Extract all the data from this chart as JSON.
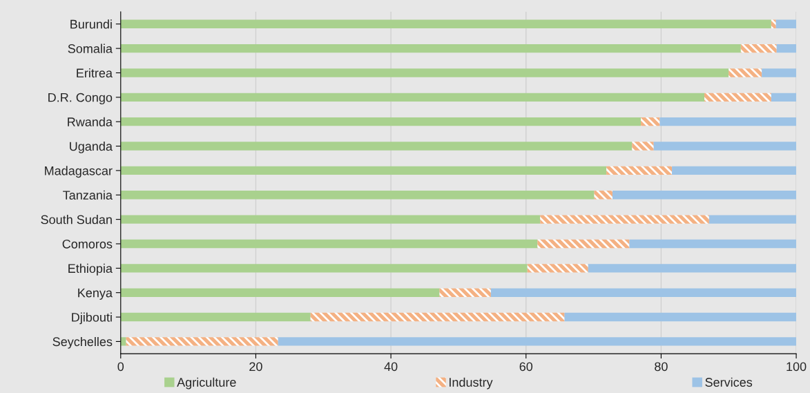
{
  "chart_data": {
    "type": "bar",
    "orientation": "horizontal",
    "stacked": true,
    "categories": [
      "Burundi",
      "Somalia",
      "Eritrea",
      "D.R. Congo",
      "Rwanda",
      "Uganda",
      "Madagascar",
      "Tanzania",
      "South Sudan",
      "Comoros",
      "Ethiopia",
      "Kenya",
      "Djibouti",
      "Seychelles"
    ],
    "series": [
      {
        "name": "Agriculture",
        "color": "#a9d18e",
        "values": [
          96.3,
          91.8,
          90.0,
          86.4,
          77.0,
          75.7,
          71.9,
          70.1,
          62.1,
          61.7,
          60.2,
          47.2,
          28.1,
          0.8
        ]
      },
      {
        "name": "Industry",
        "color": "#f4b183",
        "values": [
          0.7,
          5.3,
          4.9,
          9.9,
          2.8,
          3.2,
          9.7,
          2.7,
          25.0,
          13.6,
          9.0,
          7.6,
          37.6,
          22.5
        ]
      },
      {
        "name": "Services",
        "color": "#9dc3e6",
        "values": [
          3.0,
          2.9,
          5.1,
          3.7,
          20.2,
          21.1,
          18.4,
          27.2,
          12.9,
          24.7,
          30.8,
          45.2,
          34.3,
          76.7
        ]
      }
    ],
    "xlim": [
      0,
      100
    ],
    "xticks": [
      0,
      20,
      40,
      60,
      80,
      100
    ],
    "grid": "x",
    "legend": "bottom"
  }
}
